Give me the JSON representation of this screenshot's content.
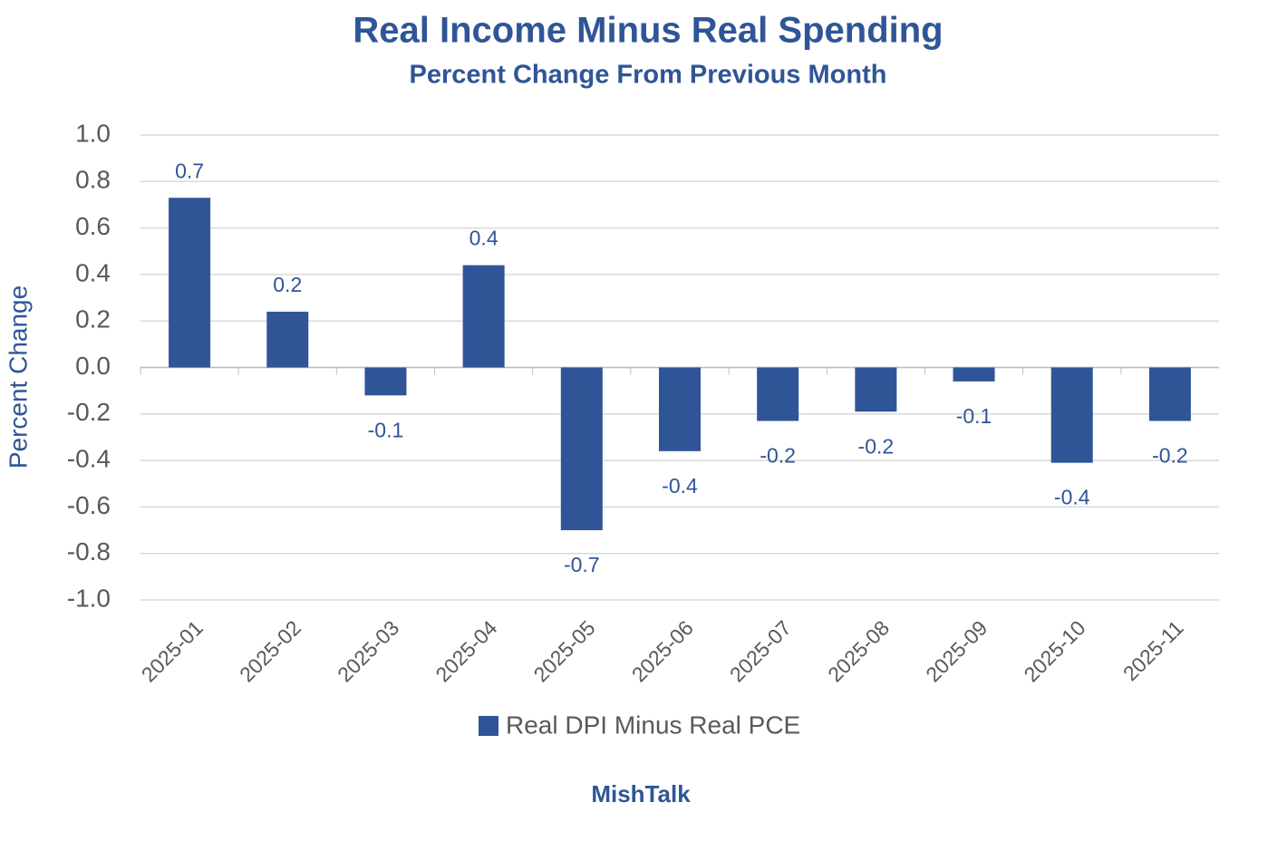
{
  "chart_data": {
    "type": "bar",
    "title": "Real Income Minus Real Spending",
    "subtitle": "Percent Change From Previous Month",
    "y_label": "Percent Change",
    "footer": "MishTalk",
    "categories": [
      "2025-01",
      "2025-02",
      "2025-03",
      "2025-04",
      "2025-05",
      "2025-06",
      "2025-07",
      "2025-08",
      "2025-09",
      "2025-10",
      "2025-11"
    ],
    "series": [
      {
        "name": "Real DPI Minus Real PCE",
        "color": "#2f5597",
        "values": [
          0.73,
          0.24,
          -0.12,
          0.44,
          -0.7,
          -0.36,
          -0.23,
          -0.19,
          -0.06,
          -0.41,
          -0.23
        ],
        "value_labels": [
          "0.7",
          "0.2",
          "-0.1",
          "0.4",
          "-0.7",
          "-0.4",
          "-0.2",
          "-0.2",
          "-0.1",
          "-0.4",
          "-0.2"
        ]
      }
    ],
    "ylim": [
      -1.0,
      1.0
    ],
    "yticks": [
      {
        "value": -1.0,
        "label": "-1.0"
      },
      -0.8,
      -0.6,
      -0.4,
      -0.2,
      {
        "value": 0,
        "label": "0.0"
      },
      0.2,
      0.4,
      0.6,
      0.8,
      {
        "value": 1.0,
        "label": "1.0"
      }
    ],
    "grid": true,
    "legend": "bottom"
  }
}
